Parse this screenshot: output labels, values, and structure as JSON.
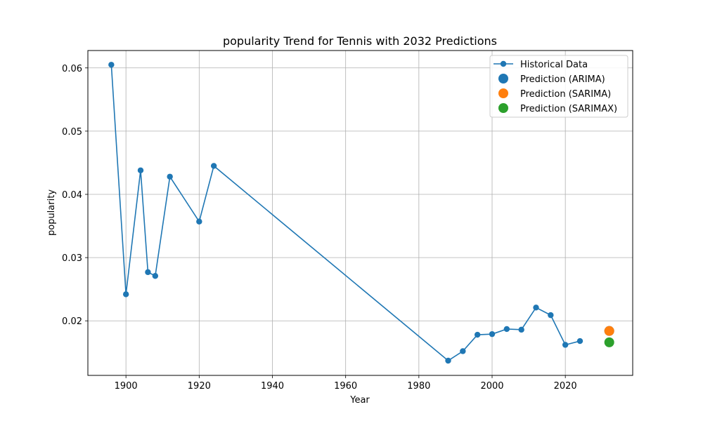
{
  "chart_data": {
    "type": "line",
    "title": "popularity Trend for Tennis with 2032 Predictions",
    "xlabel": "Year",
    "ylabel": "popularity",
    "xlim": [
      1889.6,
      2038.4
    ],
    "ylim": [
      0.01137,
      0.06275
    ],
    "xticks": [
      1900,
      1920,
      1940,
      1960,
      1980,
      2000,
      2020
    ],
    "yticks": [
      0.02,
      0.03,
      0.04,
      0.05,
      0.06
    ],
    "ytick_labels": [
      "0.02",
      "0.03",
      "0.04",
      "0.05",
      "0.06"
    ],
    "grid": true,
    "legend_position": "top-right",
    "series": [
      {
        "name": "Historical Data",
        "kind": "line-marker",
        "color": "#1f77b4",
        "x": [
          1896,
          1900,
          1904,
          1906,
          1908,
          1912,
          1920,
          1924,
          1988,
          1992,
          1996,
          2000,
          2004,
          2008,
          2012,
          2016,
          2020,
          2024
        ],
        "y": [
          0.0605,
          0.0242,
          0.0438,
          0.0277,
          0.0271,
          0.0428,
          0.0357,
          0.0445,
          0.0137,
          0.0152,
          0.0178,
          0.0179,
          0.0187,
          0.0186,
          0.0221,
          0.0209,
          0.0162,
          0.0168
        ]
      },
      {
        "name": "Prediction (ARIMA)",
        "kind": "point",
        "color": "#1f77b4",
        "x": [
          2032
        ],
        "y": [
          0.0184
        ]
      },
      {
        "name": "Prediction (SARIMA)",
        "kind": "point",
        "color": "#ff7f0e",
        "x": [
          2032
        ],
        "y": [
          0.0184
        ]
      },
      {
        "name": "Prediction (SARIMAX)",
        "kind": "point",
        "color": "#2ca02c",
        "x": [
          2032
        ],
        "y": [
          0.0166
        ]
      }
    ]
  }
}
